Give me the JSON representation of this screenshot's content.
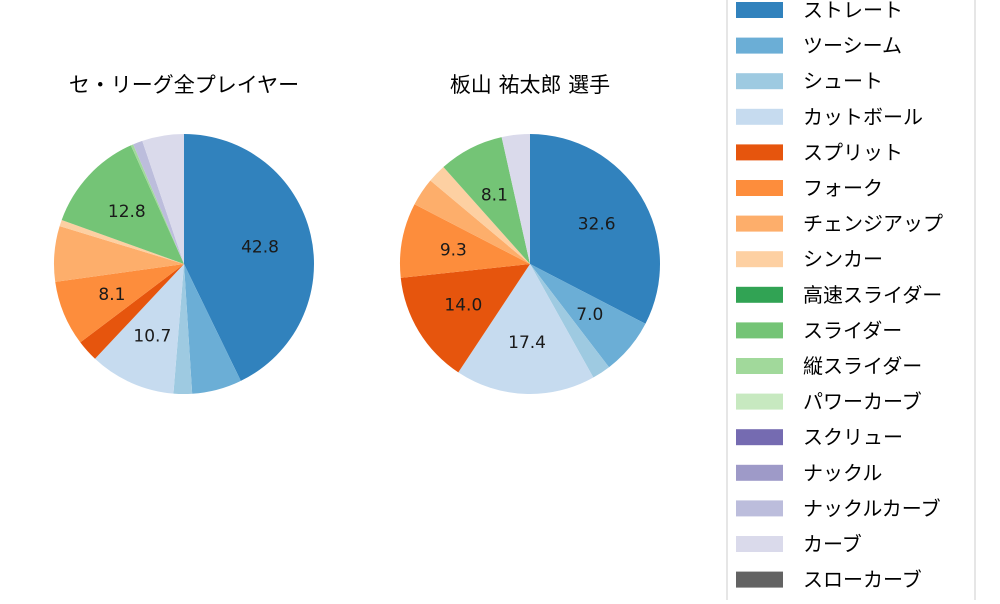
{
  "chart_data": [
    {
      "type": "pie",
      "title": "セ・リーグ全プレイヤー",
      "slices": [
        {
          "label": "ストレート",
          "value": 42.8,
          "color": "#3182bd",
          "shown": "42.8"
        },
        {
          "label": "ツーシーム",
          "value": 6.2,
          "color": "#6baed6",
          "shown": ""
        },
        {
          "label": "シュート",
          "value": 2.3,
          "color": "#9ecae1",
          "shown": ""
        },
        {
          "label": "カットボール",
          "value": 10.7,
          "color": "#c6dbef",
          "shown": "10.7"
        },
        {
          "label": "スプリット",
          "value": 2.7,
          "color": "#e6550d",
          "shown": ""
        },
        {
          "label": "フォーク",
          "value": 8.1,
          "color": "#fd8d3c",
          "shown": "8.1"
        },
        {
          "label": "チェンジアップ",
          "value": 6.9,
          "color": "#fdae6b",
          "shown": ""
        },
        {
          "label": "シンカー",
          "value": 0.8,
          "color": "#fdd0a2",
          "shown": ""
        },
        {
          "label": "スライダー",
          "value": 12.8,
          "color": "#74c476",
          "shown": "12.8"
        },
        {
          "label": "縦スライダー",
          "value": 0.3,
          "color": "#a1d99b",
          "shown": ""
        },
        {
          "label": "ナックルカーブ",
          "value": 1.2,
          "color": "#bcbddc",
          "shown": ""
        },
        {
          "label": "カーブ",
          "value": 5.2,
          "color": "#dadaeb",
          "shown": ""
        }
      ]
    },
    {
      "type": "pie",
      "title": "板山 祐太郎  選手",
      "slices": [
        {
          "label": "ストレート",
          "value": 32.6,
          "color": "#3182bd",
          "shown": "32.6"
        },
        {
          "label": "ツーシーム",
          "value": 7.0,
          "color": "#6baed6",
          "shown": "7.0"
        },
        {
          "label": "シュート",
          "value": 2.3,
          "color": "#9ecae1",
          "shown": ""
        },
        {
          "label": "カットボール",
          "value": 17.4,
          "color": "#c6dbef",
          "shown": "17.4"
        },
        {
          "label": "スプリット",
          "value": 14.0,
          "color": "#e6550d",
          "shown": "14.0"
        },
        {
          "label": "フォーク",
          "value": 9.3,
          "color": "#fd8d3c",
          "shown": "9.3"
        },
        {
          "label": "チェンジアップ",
          "value": 3.5,
          "color": "#fdae6b",
          "shown": ""
        },
        {
          "label": "シンカー",
          "value": 2.3,
          "color": "#fdd0a2",
          "shown": ""
        },
        {
          "label": "スライダー",
          "value": 8.1,
          "color": "#74c476",
          "shown": "8.1"
        },
        {
          "label": "カーブ",
          "value": 3.5,
          "color": "#dadaeb",
          "shown": ""
        }
      ]
    }
  ],
  "legend": {
    "placement": "right",
    "items": [
      {
        "label": "ストレート",
        "color": "#3182bd"
      },
      {
        "label": "ツーシーム",
        "color": "#6baed6"
      },
      {
        "label": "シュート",
        "color": "#9ecae1"
      },
      {
        "label": "カットボール",
        "color": "#c6dbef"
      },
      {
        "label": "スプリット",
        "color": "#e6550d"
      },
      {
        "label": "フォーク",
        "color": "#fd8d3c"
      },
      {
        "label": "チェンジアップ",
        "color": "#fdae6b"
      },
      {
        "label": "シンカー",
        "color": "#fdd0a2"
      },
      {
        "label": "高速スライダー",
        "color": "#31a354"
      },
      {
        "label": "スライダー",
        "color": "#74c476"
      },
      {
        "label": "縦スライダー",
        "color": "#a1d99b"
      },
      {
        "label": "パワーカーブ",
        "color": "#c7e9c0"
      },
      {
        "label": "スクリュー",
        "color": "#756bb1"
      },
      {
        "label": "ナックル",
        "color": "#9e9ac8"
      },
      {
        "label": "ナックルカーブ",
        "color": "#bcbddc"
      },
      {
        "label": "カーブ",
        "color": "#dadaeb"
      },
      {
        "label": "スローカーブ",
        "color": "#636363"
      }
    ]
  }
}
